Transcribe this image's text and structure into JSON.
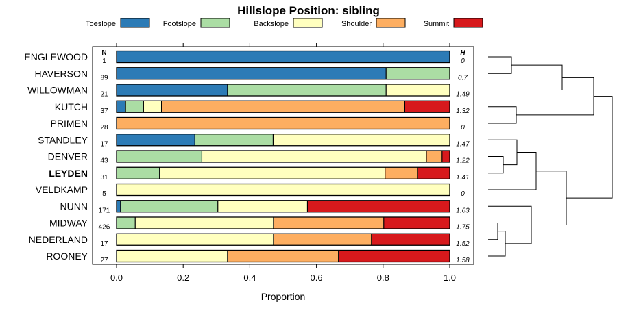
{
  "chart_data": {
    "type": "bar",
    "stacked": true,
    "orientation": "horizontal",
    "title": "Hillslope Position: sibling",
    "xlabel": "Proportion",
    "xlim": [
      0,
      1
    ],
    "x_ticks": [
      "0.0",
      "0.2",
      "0.4",
      "0.6",
      "0.8",
      "1.0"
    ],
    "x_tick_values": [
      0,
      0.2,
      0.4,
      0.6,
      0.8,
      1.0
    ],
    "n_header": "N",
    "h_header": "H",
    "highlight": "LEYDEN",
    "series": [
      {
        "name": "Toeslope",
        "color": "#2C7BB6"
      },
      {
        "name": "Footslope",
        "color": "#ABDDA4"
      },
      {
        "name": "Backslope",
        "color": "#FFFFBF"
      },
      {
        "name": "Shoulder",
        "color": "#FDAE61"
      },
      {
        "name": "Summit",
        "color": "#D7191C"
      }
    ],
    "rows": [
      {
        "label": "ENGLEWOOD",
        "n": "1",
        "h": "0",
        "values": [
          1.0,
          0,
          0,
          0,
          0
        ]
      },
      {
        "label": "HAVERSON",
        "n": "89",
        "h": "0.7",
        "values": [
          0.809,
          0.191,
          0,
          0,
          0
        ]
      },
      {
        "label": "WILLOWMAN",
        "n": "21",
        "h": "1.49",
        "values": [
          0.333,
          0.476,
          0.191,
          0,
          0
        ]
      },
      {
        "label": "KUTCH",
        "n": "37",
        "h": "1.32",
        "values": [
          0.027,
          0.054,
          0.054,
          0.73,
          0.135
        ]
      },
      {
        "label": "PRIMEN",
        "n": "28",
        "h": "0",
        "values": [
          0,
          0,
          0,
          1.0,
          0
        ]
      },
      {
        "label": "STANDLEY",
        "n": "17",
        "h": "1.47",
        "values": [
          0.235,
          0.235,
          0.53,
          0,
          0
        ]
      },
      {
        "label": "DENVER",
        "n": "43",
        "h": "1.22",
        "values": [
          0,
          0.256,
          0.674,
          0.047,
          0.023
        ]
      },
      {
        "label": "LEYDEN",
        "n": "31",
        "h": "1.41",
        "values": [
          0,
          0.129,
          0.677,
          0.097,
          0.097
        ]
      },
      {
        "label": "VELDKAMP",
        "n": "5",
        "h": "0",
        "values": [
          0,
          0,
          1.0,
          0,
          0
        ]
      },
      {
        "label": "NUNN",
        "n": "171",
        "h": "1.63",
        "values": [
          0.012,
          0.292,
          0.269,
          0,
          0.427
        ]
      },
      {
        "label": "MIDWAY",
        "n": "426",
        "h": "1.75",
        "values": [
          0,
          0.056,
          0.415,
          0.331,
          0.198
        ]
      },
      {
        "label": "NEDERLAND",
        "n": "17",
        "h": "1.52",
        "values": [
          0,
          0,
          0.471,
          0.294,
          0.235
        ]
      },
      {
        "label": "ROONEY",
        "n": "27",
        "h": "1.58",
        "values": [
          0,
          0,
          0.333,
          0.333,
          0.334
        ]
      }
    ]
  }
}
